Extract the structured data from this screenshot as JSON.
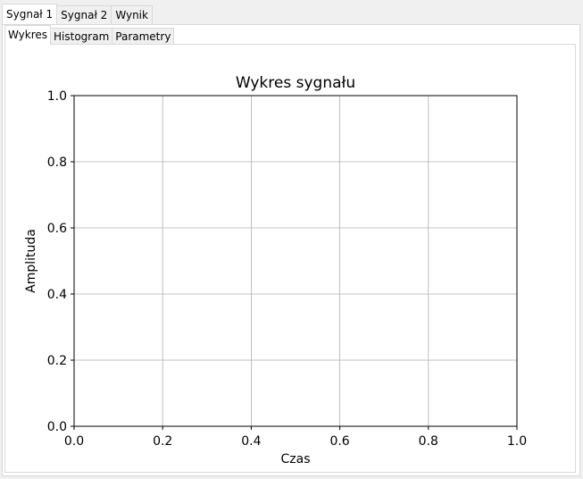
{
  "outer_tabs": [
    {
      "label": "Sygnał 1",
      "active": true
    },
    {
      "label": "Sygnał 2",
      "active": false
    },
    {
      "label": "Wynik",
      "active": false
    }
  ],
  "inner_tabs": [
    {
      "label": "Wykres",
      "active": true
    },
    {
      "label": "Histogram",
      "active": false
    },
    {
      "label": "Parametry",
      "active": false
    }
  ],
  "chart_data": {
    "type": "line",
    "title": "Wykres sygnału",
    "xlabel": "Czas",
    "ylabel": "Amplituda",
    "xlim": [
      0.0,
      1.0
    ],
    "ylim": [
      0.0,
      1.0
    ],
    "xticks": [
      "0.0",
      "0.2",
      "0.4",
      "0.6",
      "0.8",
      "1.0"
    ],
    "yticks": [
      "0.0",
      "0.2",
      "0.4",
      "0.6",
      "0.8",
      "1.0"
    ],
    "grid": true,
    "series": [],
    "colors": {
      "grid": "#b0b0b0",
      "axes": "#000000"
    }
  }
}
